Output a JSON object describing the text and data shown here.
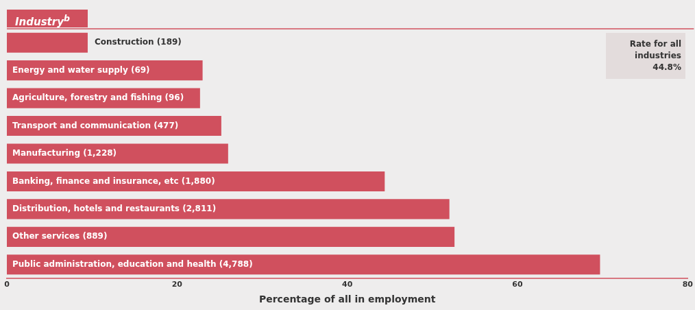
{
  "chart_data": {
    "type": "bar",
    "orientation": "horizontal",
    "ylabel": "Industry$^{b}$",
    "xlabel": "Percentage of all in employment",
    "categories": [
      "Construction (189)",
      "Energy and water supply (69)",
      "Agriculture, forestry and fishing (96)",
      "Transport and communication (477)",
      "Manufacturing (1,228)",
      "Banking, finance and insurance, etc (1,880)",
      "Distribution, hotels and restaurants (2,811)",
      "Other services (889)",
      "Public administration, education and health (4,788)"
    ],
    "values": [
      9.5,
      23.0,
      22.7,
      25.2,
      26.0,
      44.4,
      52.0,
      52.6,
      69.7
    ],
    "color": "#d0505e",
    "xlim": [
      0,
      80
    ],
    "xticks": [
      0,
      20,
      40,
      60,
      80
    ],
    "tick_labels": "x",
    "grid": false,
    "legend": false,
    "annotations": [
      "Rate for all industries 44.8%"
    ]
  }
}
